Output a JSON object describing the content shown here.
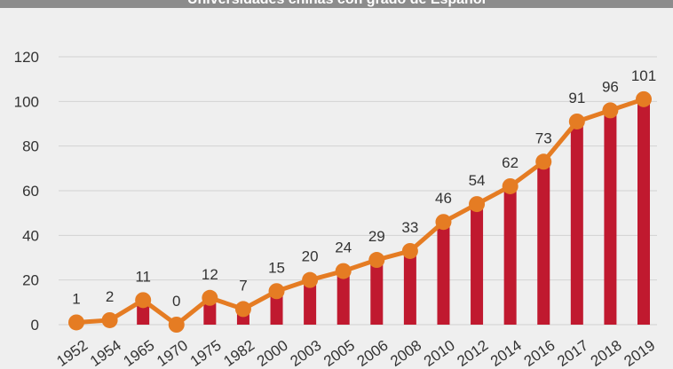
{
  "chart_data": {
    "type": "bar+line",
    "title": "Universidades chinas con grado de Español",
    "categories": [
      "1952",
      "1954",
      "1965",
      "1970",
      "1975",
      "1982",
      "2000",
      "2003",
      "2005",
      "2006",
      "2008",
      "2010",
      "2012",
      "2014",
      "2016",
      "2017",
      "2018",
      "2019"
    ],
    "values": [
      1,
      2,
      11,
      0,
      12,
      7,
      15,
      20,
      24,
      29,
      33,
      46,
      54,
      62,
      73,
      91,
      96,
      101
    ],
    "value_labels": [
      "1",
      "2",
      "11",
      "0",
      "12",
      "7",
      "15",
      "20",
      "24",
      "29",
      "33",
      "46",
      "54",
      "62",
      "73",
      "91",
      "96",
      "101"
    ],
    "bar_values": [
      null,
      null,
      11,
      null,
      12,
      7,
      15,
      20,
      24,
      29,
      33,
      46,
      54,
      62,
      73,
      91,
      96,
      101
    ],
    "yticks": [
      "0",
      "20",
      "40",
      "60",
      "80",
      "100",
      "120"
    ],
    "ylim": [
      0,
      120
    ],
    "grid": true,
    "legend": "none",
    "colors": {
      "bar": "#c0192f",
      "line": "#e57c23",
      "grid": "#d2d2d2",
      "title_bg": "#8c8c8c"
    }
  }
}
